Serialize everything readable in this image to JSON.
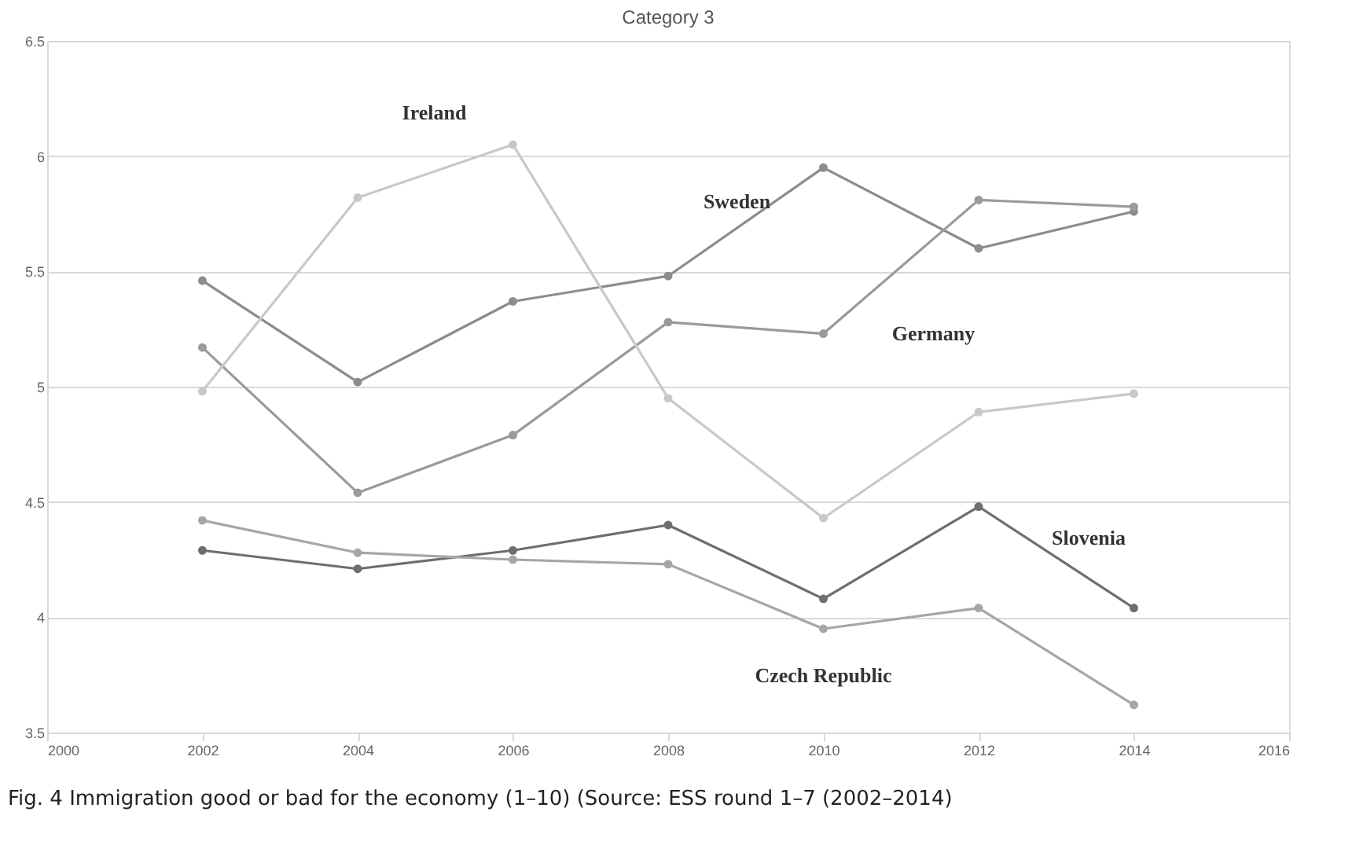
{
  "chart_data": {
    "type": "line",
    "title": "Category 3",
    "x": [
      2002,
      2004,
      2006,
      2008,
      2010,
      2012,
      2014
    ],
    "series": [
      {
        "name": "Sweden",
        "color": "#8c8c8c",
        "values": [
          5.46,
          5.02,
          5.37,
          5.48,
          5.95,
          5.6,
          5.76
        ]
      },
      {
        "name": "Germany",
        "color": "#9a9a9a",
        "values": [
          5.17,
          4.54,
          4.79,
          5.28,
          5.23,
          5.81,
          5.78
        ]
      },
      {
        "name": "Ireland",
        "color": "#c8c8c8",
        "values": [
          4.98,
          5.82,
          6.05,
          4.95,
          4.43,
          4.89,
          4.97
        ]
      },
      {
        "name": "Slovenia",
        "color": "#6e6e6e",
        "values": [
          4.29,
          4.21,
          4.29,
          4.4,
          4.08,
          4.48,
          4.04
        ]
      },
      {
        "name": "Czech Republic",
        "color": "#a6a6a6",
        "values": [
          4.42,
          4.28,
          4.25,
          4.23,
          3.95,
          4.04,
          3.62
        ]
      }
    ],
    "xlim": [
      2000,
      2016
    ],
    "xticks": [
      2000,
      2002,
      2004,
      2006,
      2008,
      2010,
      2012,
      2014,
      2016
    ],
    "ylim": [
      3.5,
      6.5
    ],
    "yticks": [
      3.5,
      4,
      4.5,
      5,
      5.5,
      6,
      6.5
    ],
    "grid": "y",
    "legend": false,
    "marker": "circle",
    "line_style": "solid",
    "annotations": [
      "Fig. 4 Immigration good or bad for the economy (1–10) (Source: ESS round 1–7 (2002–2014)"
    ]
  }
}
